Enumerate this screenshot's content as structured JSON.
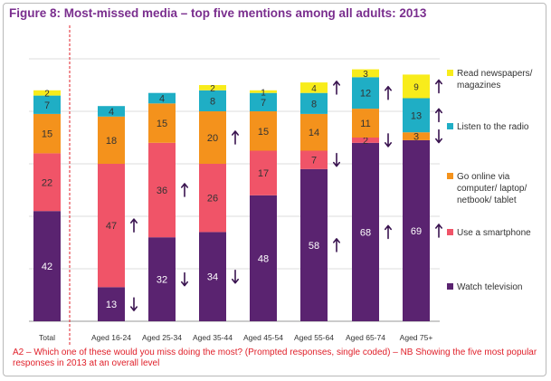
{
  "title": "Figure 8: Most-missed media – top five mentions among all adults: 2013",
  "footnote": "A2 – Which one of these would you miss doing the most? (Prompted responses, single coded)  – NB Showing the five most popular responses in 2013 at an overall level",
  "chart_data": {
    "type": "bar",
    "stacked": true,
    "title": "Figure 8: Most-missed media – top five mentions among all adults: 2013",
    "xlabel": "",
    "ylabel": "",
    "ylim": [
      0,
      100
    ],
    "grid": true,
    "legend_position": "right",
    "categories": [
      "Total",
      "Aged 16-24",
      "Aged 25-34",
      "Aged 35-44",
      "Aged 45-54",
      "Aged 55-64",
      "Aged 65-74",
      "Aged 75+"
    ],
    "series": [
      {
        "name": "Watch television",
        "color": "#5a2370",
        "values": [
          42,
          13,
          32,
          34,
          48,
          58,
          68,
          69
        ]
      },
      {
        "name": "Use a smartphone",
        "color": "#f05468",
        "values": [
          22,
          47,
          36,
          26,
          17,
          7,
          2,
          null
        ]
      },
      {
        "name": "Go online via computer/ laptop/ netbook/ tablet",
        "color": "#f4921c",
        "values": [
          15,
          18,
          15,
          20,
          15,
          14,
          11,
          3
        ]
      },
      {
        "name": "Listen to the radio",
        "color": "#1faec5",
        "values": [
          7,
          4,
          4,
          8,
          7,
          8,
          12,
          13
        ]
      },
      {
        "name": "Read newspapers/ magazines",
        "color": "#f8ec1b",
        "values": [
          2,
          null,
          null,
          2,
          1,
          4,
          3,
          9
        ]
      }
    ],
    "significance_arrows": [
      {
        "category": "Aged 16-24",
        "series": "Watch television",
        "direction": "down"
      },
      {
        "category": "Aged 16-24",
        "series": "Use a smartphone",
        "direction": "up"
      },
      {
        "category": "Aged 25-34",
        "series": "Watch television",
        "direction": "down"
      },
      {
        "category": "Aged 25-34",
        "series": "Use a smartphone",
        "direction": "up"
      },
      {
        "category": "Aged 35-44",
        "series": "Watch television",
        "direction": "down"
      },
      {
        "category": "Aged 35-44",
        "series": "Go online via computer/ laptop/ netbook/ tablet",
        "direction": "up"
      },
      {
        "category": "Aged 55-64",
        "series": "Watch television",
        "direction": "up"
      },
      {
        "category": "Aged 55-64",
        "series": "Use a smartphone",
        "direction": "down"
      },
      {
        "category": "Aged 55-64",
        "series": "Read newspapers/ magazines",
        "direction": "up"
      },
      {
        "category": "Aged 65-74",
        "series": "Watch television",
        "direction": "up"
      },
      {
        "category": "Aged 65-74",
        "series": "Use a smartphone",
        "direction": "down"
      },
      {
        "category": "Aged 65-74",
        "series": "Listen to the radio",
        "direction": "up"
      },
      {
        "category": "Aged 75+",
        "series": "Watch television",
        "direction": "up"
      },
      {
        "category": "Aged 75+",
        "series": "Go online via computer/ laptop/ netbook/ tablet",
        "direction": "down"
      },
      {
        "category": "Aged 75+",
        "series": "Listen to the radio",
        "direction": "up"
      },
      {
        "category": "Aged 75+",
        "series": "Read newspapers/ magazines",
        "direction": "up"
      }
    ]
  }
}
